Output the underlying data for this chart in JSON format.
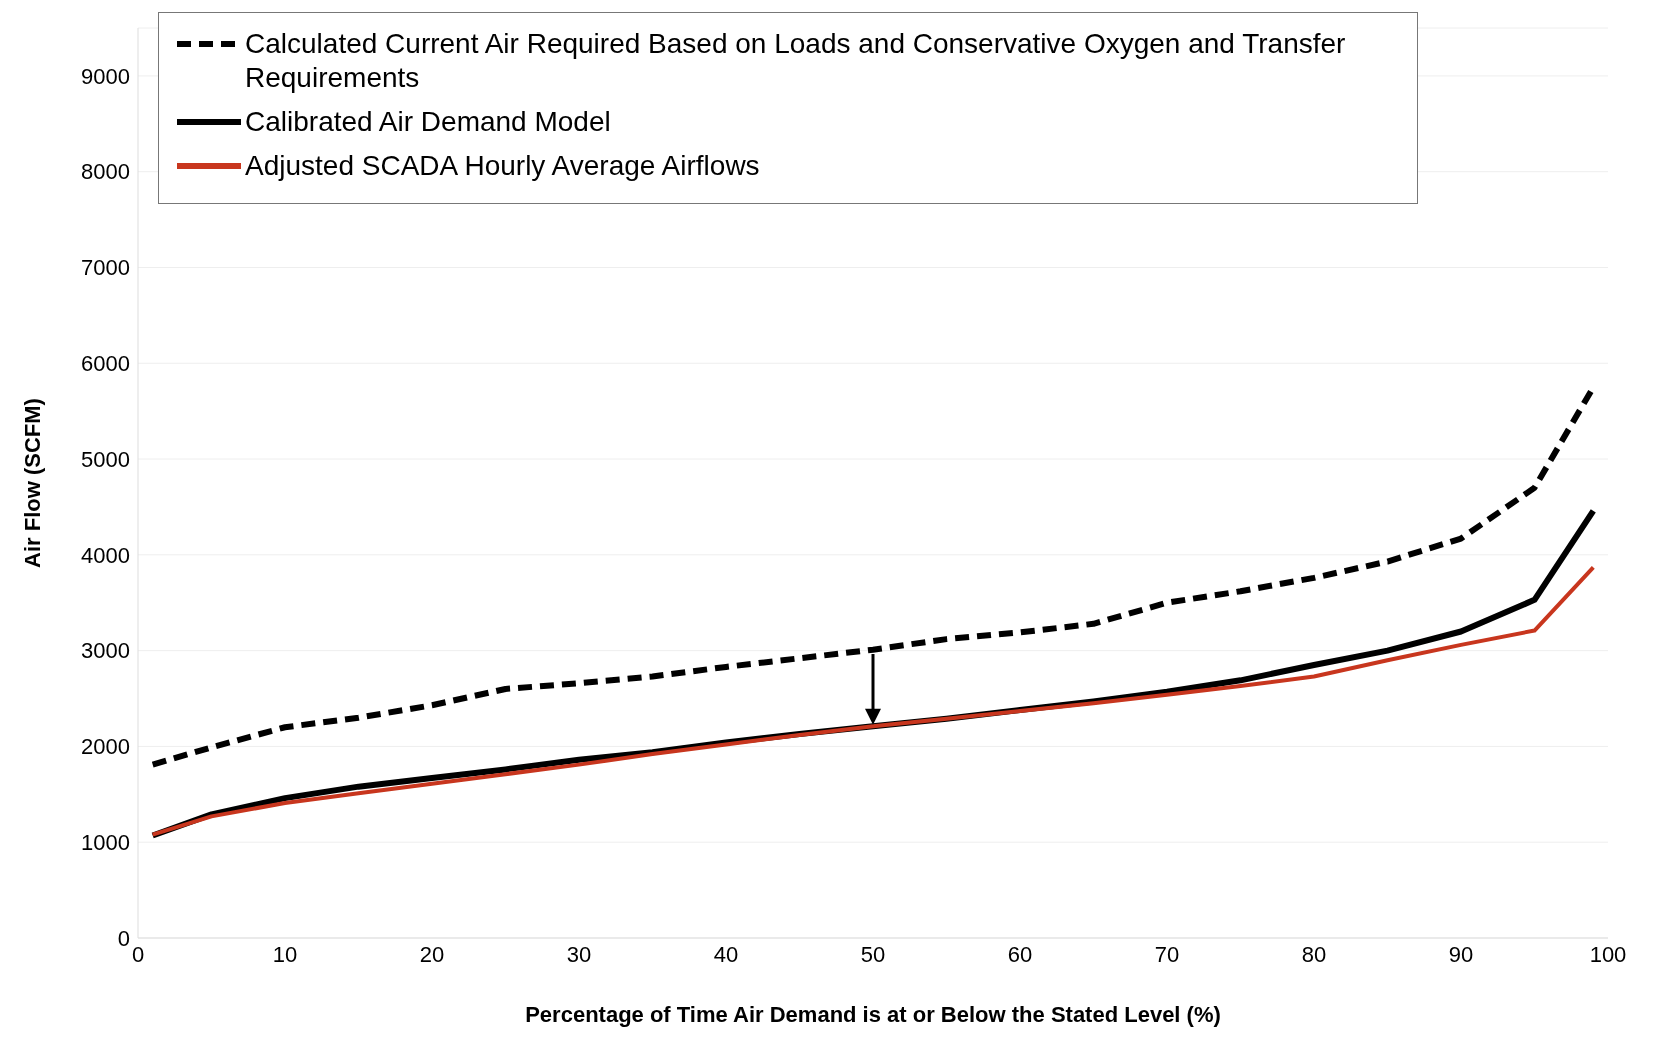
{
  "chart_data": {
    "type": "line",
    "xlabel": "Percentage of Time Air Demand is at or Below the Stated Level (%)",
    "ylabel": "Air Flow (SCFM)",
    "x": [
      1,
      5,
      10,
      15,
      20,
      25,
      30,
      35,
      40,
      45,
      50,
      55,
      60,
      65,
      70,
      75,
      80,
      85,
      90,
      95,
      99
    ],
    "series": [
      {
        "name": "Calculated Current Air Required Based on Loads and Conservative Oxygen and Transfer Requirements",
        "color": "#000000",
        "line_style": "dashed",
        "values": [
          1810,
          1990,
          2200,
          2300,
          2430,
          2600,
          2660,
          2730,
          2830,
          2920,
          3010,
          3120,
          3190,
          3280,
          3500,
          3620,
          3760,
          3930,
          4170,
          4700,
          5750
        ]
      },
      {
        "name": "Calibrated Air Demand Model",
        "color": "#000000",
        "line_style": "solid",
        "values": [
          1070,
          1290,
          1460,
          1580,
          1670,
          1760,
          1860,
          1940,
          2040,
          2130,
          2210,
          2290,
          2380,
          2470,
          2570,
          2690,
          2850,
          3000,
          3200,
          3530,
          4460
        ]
      },
      {
        "name": "Adjusted SCADA Hourly Average Airflows",
        "color": "#c8361e",
        "line_style": "solid",
        "values": [
          1080,
          1270,
          1410,
          1510,
          1610,
          1710,
          1810,
          1920,
          2020,
          2120,
          2210,
          2290,
          2370,
          2450,
          2540,
          2630,
          2730,
          2900,
          3060,
          3210,
          3870
        ]
      }
    ],
    "xlim": [
      0,
      100
    ],
    "xticks": [
      0,
      10,
      20,
      30,
      40,
      50,
      60,
      70,
      80,
      90,
      100
    ],
    "ylim": [
      0,
      9500
    ],
    "yticks": [
      0,
      1000,
      2000,
      3000,
      4000,
      5000,
      6000,
      7000,
      8000,
      9000
    ],
    "grid": "y",
    "legend": "top left",
    "marker": "none"
  }
}
